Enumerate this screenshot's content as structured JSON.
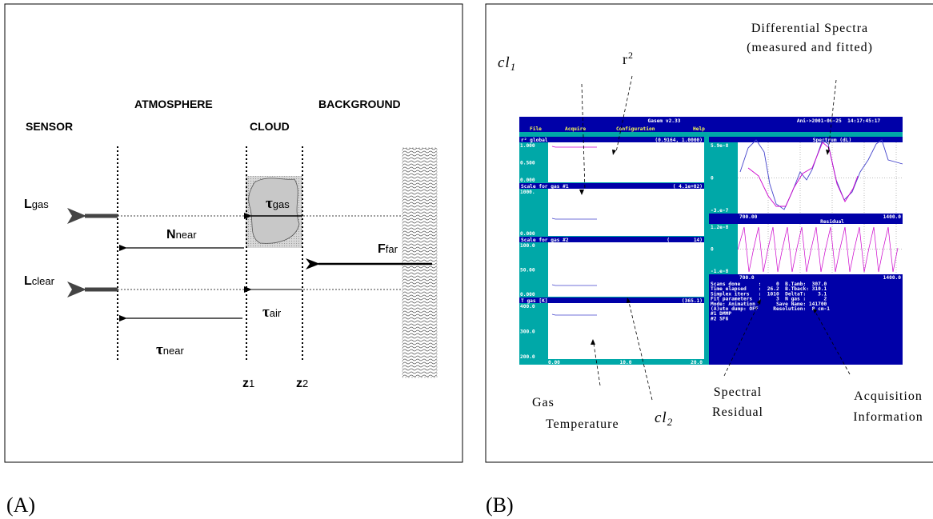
{
  "panel_a": {
    "label": "(A)",
    "regions": [
      "SENSOR",
      "ATMOSPHERE",
      "CLOUD",
      "BACKGROUND"
    ],
    "quantities": [
      {
        "symbol": "L",
        "sub": "gas"
      },
      {
        "symbol": "N",
        "sub": "near"
      },
      {
        "symbol": "F",
        "sub": "far"
      },
      {
        "symbol": "L",
        "sub": "clear"
      },
      {
        "symbol": "τ",
        "sub": "gas"
      },
      {
        "symbol": "τ",
        "sub": "air"
      },
      {
        "symbol": "τ",
        "sub": "near"
      },
      {
        "symbol": "z",
        "sub": "1"
      },
      {
        "symbol": "z",
        "sub": "2"
      }
    ]
  },
  "panel_b": {
    "label": "(B)",
    "window": {
      "title": "Gasem v2.33",
      "status": "Ani->2001-06-25  14:17:45:17",
      "menu": [
        "File",
        "Acquire",
        "Configuration",
        "Help"
      ],
      "plots": [
        {
          "header": "r² global",
          "range": "(0.9164, 1.0000)",
          "yticks": [
            "1.000",
            "0.500",
            "0.000"
          ]
        },
        {
          "header": "Scale for gas #1",
          "range": "( 4.1e+02)",
          "yticks": [
            "1000.",
            "0.000"
          ]
        },
        {
          "header": "Scale for gas #2",
          "range": "(        14)",
          "yticks": [
            "100.0",
            "50.00",
            "0.000"
          ]
        },
        {
          "header": "T gas [K]",
          "range": "(365.1)",
          "yticks": [
            "400.0",
            "300.0",
            "200.0"
          ]
        }
      ],
      "xticks": [
        "0.00",
        "10.0",
        "20.0"
      ],
      "spectrum": {
        "header": "Spectrum (dL)",
        "yticks": [
          "5.9e-8",
          "0",
          "-3.e-7"
        ],
        "xticks": [
          "700.00",
          "1400.0"
        ]
      },
      "residual": {
        "header": "Residual",
        "yticks": [
          "1.2e-8",
          "0",
          "-1.e-8"
        ],
        "xticks": [
          "700.0",
          "1400.0"
        ]
      },
      "info": [
        "Scans done      :     0  B.Tamb:  307.0",
        "Time elapsed    :  26.2  B.Tback: 310.1",
        "Simplex iters   :  1010  DeltaT:    3.1",
        "Fit parameters  :     3  N gas :      2",
        "Mode: Animation       Save Name: 141700",
        "(A)uto dump: OFF     Resolution:  8 cm-1",
        "#1 DMMP",
        "#2 SF6"
      ]
    },
    "annotations": {
      "cl1": {
        "symbol": "cl",
        "sub": "1"
      },
      "r2": {
        "symbol": "r",
        "sup": "2"
      },
      "differential_spectra": [
        "Differential Spectra",
        "(measured and fitted)"
      ],
      "gas_temperature": [
        "Gas",
        "Temperature"
      ],
      "cl2": {
        "symbol": "cl",
        "sub": "2"
      },
      "spectral_residual": [
        "Spectral",
        "Residual"
      ],
      "acquisition_information": [
        "Acquisition",
        "Information"
      ]
    }
  }
}
